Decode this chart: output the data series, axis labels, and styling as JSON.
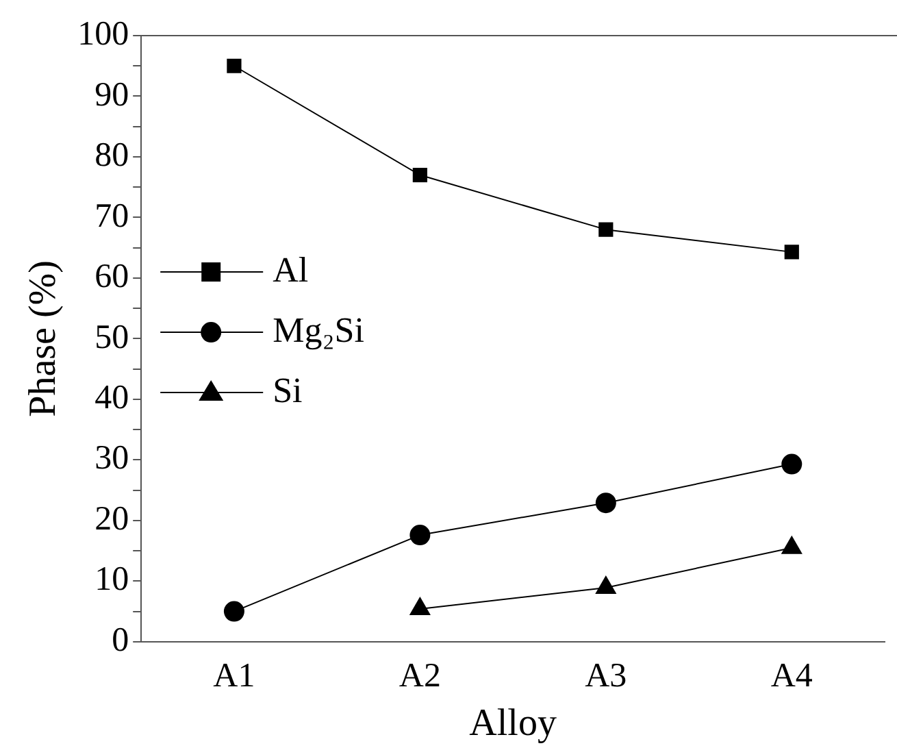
{
  "chart_data": {
    "type": "line",
    "xlabel": "Alloy",
    "ylabel": "Phase (%)",
    "categories": [
      "A1",
      "A2",
      "A3",
      "A4"
    ],
    "series": [
      {
        "name": "Al",
        "color": "#000000",
        "marker": "square",
        "values": [
          95,
          77,
          68,
          64.3
        ]
      },
      {
        "name": "Mg₂Si",
        "color": "#000000",
        "marker": "circle",
        "values": [
          5,
          17.6,
          22.9,
          29.3
        ]
      },
      {
        "name": "Si",
        "color": "#000000",
        "marker": "triangle",
        "values": [
          null,
          5.4,
          8.9,
          15.5
        ]
      }
    ],
    "ylim": [
      0,
      100
    ],
    "yticks": [
      0,
      {
        "value": 5,
        "label": null
      },
      10,
      {
        "value": 15,
        "label": null
      },
      20,
      {
        "value": 25,
        "label": null
      },
      30,
      {
        "value": 35,
        "label": null
      },
      40,
      {
        "value": 45,
        "label": null
      },
      50,
      {
        "value": 55,
        "label": null
      },
      60,
      {
        "value": 65,
        "label": null
      },
      70,
      {
        "value": 75,
        "label": null
      },
      80,
      {
        "value": 85,
        "label": null
      },
      90,
      {
        "value": 95,
        "label": null
      },
      100
    ],
    "grid": false,
    "legend": "left",
    "line_style": "solid"
  }
}
